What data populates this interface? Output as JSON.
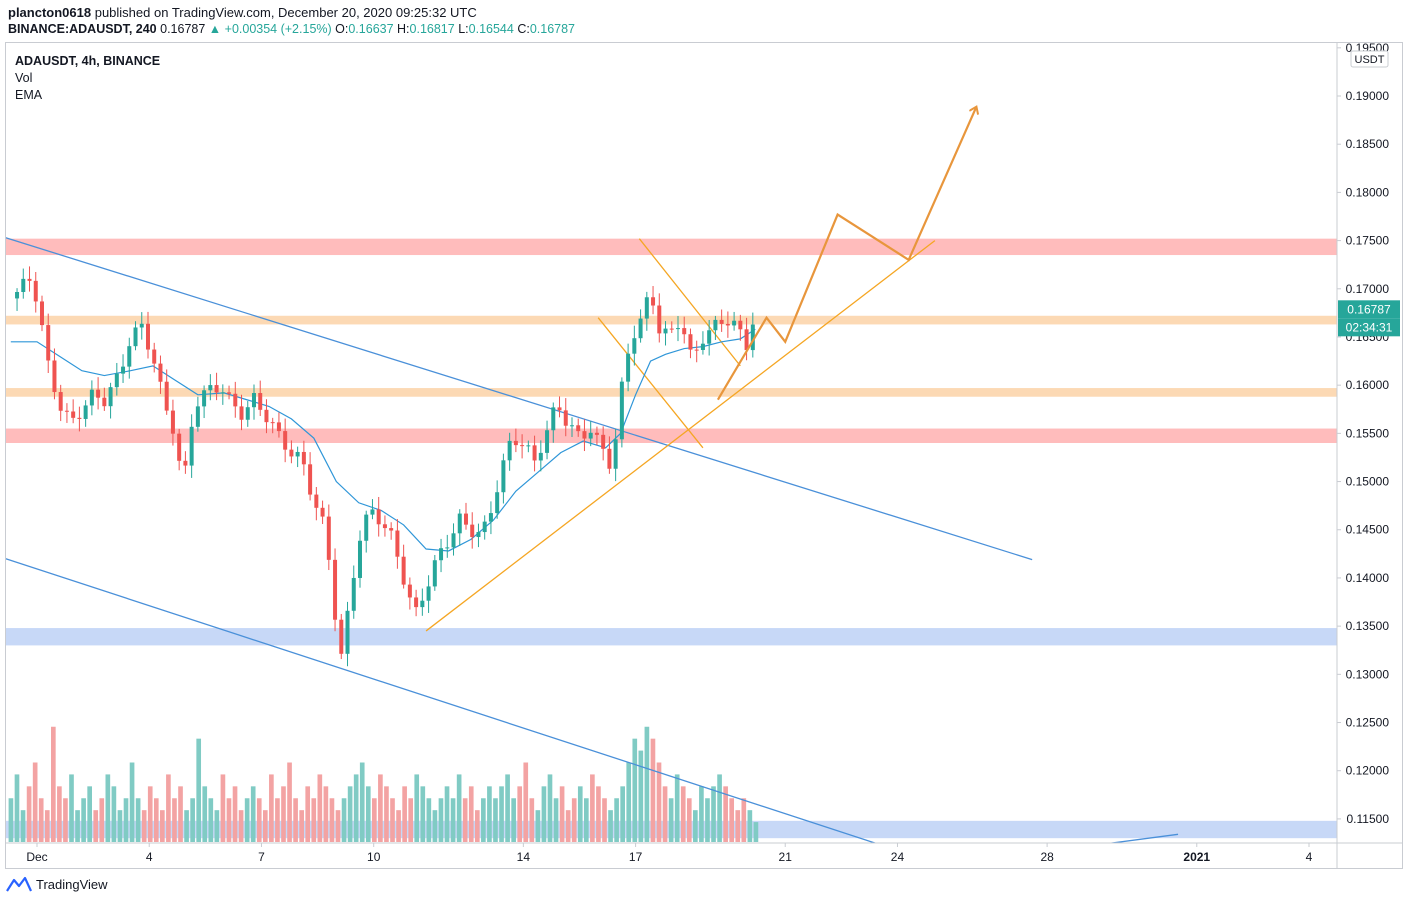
{
  "header": {
    "author": "plancton0618",
    "published_text": "published on TradingView.com, December 20, 2020 09:25:32 UTC",
    "symbol_line": "BINANCE:ADAUSDT, 240",
    "last_price": "0.16787",
    "change_text": "▲ +0.00354 (+2.15%)",
    "o_label": "O:",
    "o_value": "0.16637",
    "h_label": "H:",
    "h_value": "0.16817",
    "l_label": "L:",
    "l_value": "0.16544",
    "c_label": "C:",
    "c_value": "0.16787"
  },
  "legend": {
    "symbol": "ADAUSDT, 4h, BINANCE",
    "vol": "Vol",
    "ema": "EMA"
  },
  "footer": {
    "brand": "TradingView"
  },
  "chart_data": {
    "type": "candlestick",
    "title": "ADAUSDT, 4h, BINANCE",
    "currency": "USDT",
    "ylim": [
      0.1125,
      0.1955
    ],
    "y_ticks": [
      "0.19500",
      "0.19000",
      "0.18500",
      "0.18000",
      "0.17500",
      "0.17000",
      "0.16500",
      "0.16000",
      "0.15500",
      "0.15000",
      "0.14500",
      "0.14000",
      "0.13500",
      "0.13000",
      "0.12500",
      "0.12000",
      "0.11500"
    ],
    "x_ticks": [
      {
        "label": "Dec",
        "day": 1
      },
      {
        "label": "4",
        "day": 4
      },
      {
        "label": "7",
        "day": 7
      },
      {
        "label": "10",
        "day": 10
      },
      {
        "label": "14",
        "day": 14
      },
      {
        "label": "17",
        "day": 17
      },
      {
        "label": "21",
        "day": 21
      },
      {
        "label": "24",
        "day": 24
      },
      {
        "label": "28",
        "day": 28
      },
      {
        "label": "2021",
        "day": 32
      },
      {
        "label": "4",
        "day": 35
      }
    ],
    "last_price_label": "0.16787",
    "countdown_label": "02:34:31",
    "close_path": [
      [
        0.3,
        0.169
      ],
      [
        0.8,
        0.171
      ],
      [
        1.0,
        0.169
      ],
      [
        1.3,
        0.162
      ],
      [
        1.6,
        0.158
      ],
      [
        1.9,
        0.156
      ],
      [
        2.2,
        0.1575
      ],
      [
        2.5,
        0.159
      ],
      [
        2.8,
        0.1585
      ],
      [
        3.2,
        0.161
      ],
      [
        3.5,
        0.165
      ],
      [
        3.8,
        0.166
      ],
      [
        4.1,
        0.163
      ],
      [
        4.4,
        0.158
      ],
      [
        4.7,
        0.155
      ],
      [
        4.9,
        0.149
      ],
      [
        5.2,
        0.158
      ],
      [
        5.6,
        0.1595
      ],
      [
        5.9,
        0.16
      ],
      [
        6.2,
        0.158
      ],
      [
        6.5,
        0.157
      ],
      [
        6.8,
        0.1585
      ],
      [
        7.1,
        0.157
      ],
      [
        7.5,
        0.1545
      ],
      [
        7.8,
        0.153
      ],
      [
        8.1,
        0.152
      ],
      [
        8.4,
        0.148
      ],
      [
        8.7,
        0.145
      ],
      [
        8.9,
        0.139
      ],
      [
        9.1,
        0.131
      ],
      [
        9.3,
        0.136
      ],
      [
        9.6,
        0.144
      ],
      [
        9.9,
        0.147
      ],
      [
        10.2,
        0.146
      ],
      [
        10.5,
        0.144
      ],
      [
        10.8,
        0.14
      ],
      [
        11.1,
        0.136
      ],
      [
        11.4,
        0.139
      ],
      [
        11.7,
        0.142
      ],
      [
        12.0,
        0.144
      ],
      [
        12.3,
        0.146
      ],
      [
        12.6,
        0.145
      ],
      [
        12.9,
        0.1445
      ],
      [
        13.1,
        0.1465
      ],
      [
        13.4,
        0.151
      ],
      [
        13.7,
        0.1545
      ],
      [
        14.0,
        0.154
      ],
      [
        14.3,
        0.152
      ],
      [
        14.6,
        0.155
      ],
      [
        14.9,
        0.158
      ],
      [
        15.2,
        0.156
      ],
      [
        15.5,
        0.1545
      ],
      [
        15.8,
        0.1555
      ],
      [
        16.0,
        0.154
      ],
      [
        16.3,
        0.152
      ],
      [
        16.5,
        0.155
      ],
      [
        16.7,
        0.162
      ],
      [
        17.0,
        0.166
      ],
      [
        17.2,
        0.167
      ],
      [
        17.4,
        0.17
      ],
      [
        17.6,
        0.166
      ],
      [
        17.9,
        0.165
      ],
      [
        18.2,
        0.167
      ],
      [
        18.5,
        0.1625
      ],
      [
        18.8,
        0.165
      ],
      [
        19.1,
        0.166
      ],
      [
        19.4,
        0.167
      ],
      [
        19.7,
        0.166
      ],
      [
        20.0,
        0.164
      ],
      [
        20.2,
        0.1679
      ]
    ],
    "ema_path": [
      [
        0.3,
        0.1645
      ],
      [
        1.0,
        0.1645
      ],
      [
        1.6,
        0.163
      ],
      [
        2.2,
        0.1615
      ],
      [
        2.8,
        0.161
      ],
      [
        3.5,
        0.1615
      ],
      [
        4.1,
        0.162
      ],
      [
        4.7,
        0.1605
      ],
      [
        5.3,
        0.159
      ],
      [
        6.0,
        0.1592
      ],
      [
        6.6,
        0.1585
      ],
      [
        7.2,
        0.1578
      ],
      [
        7.8,
        0.1565
      ],
      [
        8.4,
        0.1545
      ],
      [
        9.0,
        0.15
      ],
      [
        9.6,
        0.1478
      ],
      [
        10.2,
        0.147
      ],
      [
        10.8,
        0.1455
      ],
      [
        11.4,
        0.143
      ],
      [
        12.0,
        0.1428
      ],
      [
        12.6,
        0.144
      ],
      [
        13.2,
        0.146
      ],
      [
        13.8,
        0.149
      ],
      [
        14.4,
        0.151
      ],
      [
        15.0,
        0.153
      ],
      [
        15.6,
        0.1542
      ],
      [
        16.2,
        0.1535
      ],
      [
        16.6,
        0.155
      ],
      [
        17.0,
        0.159
      ],
      [
        17.4,
        0.1625
      ],
      [
        17.8,
        0.1632
      ],
      [
        18.3,
        0.1638
      ],
      [
        18.8,
        0.164
      ],
      [
        19.3,
        0.1645
      ],
      [
        19.8,
        0.1648
      ],
      [
        20.2,
        0.1658
      ]
    ],
    "volume": [
      3,
      5,
      2,
      4,
      6,
      3,
      2,
      9,
      4,
      3,
      5,
      2,
      3,
      4,
      2,
      3,
      5,
      4,
      2,
      3,
      6,
      3,
      2,
      4,
      3,
      2,
      5,
      3,
      4,
      2,
      3,
      8,
      4,
      3,
      2,
      5,
      3,
      4,
      2,
      3,
      4,
      3,
      2,
      5,
      3,
      4,
      6,
      3,
      2,
      4,
      3,
      5,
      4,
      3,
      2,
      3,
      4,
      5,
      6,
      4,
      3,
      5,
      4,
      3,
      2,
      4,
      3,
      5,
      4,
      3,
      2,
      3,
      4,
      3,
      5,
      3,
      4,
      2,
      3,
      4,
      3,
      4,
      5,
      3,
      4,
      6,
      3,
      2,
      4,
      5,
      3,
      4,
      2,
      3,
      4,
      3,
      5,
      4,
      3,
      2,
      3,
      4,
      6,
      8,
      7,
      9,
      8,
      6,
      4,
      3,
      5,
      4,
      3,
      2,
      4,
      3,
      4,
      5,
      4,
      3,
      2,
      3,
      2,
      1
    ],
    "zones": [
      {
        "name": "resistance-zone-top",
        "low": 0.1735,
        "high": 0.1752,
        "color": "#ffbcbc"
      },
      {
        "name": "orange-zone-upper",
        "low": 0.1663,
        "high": 0.1672,
        "color": "#fcd9b4"
      },
      {
        "name": "orange-zone-lower",
        "low": 0.1588,
        "high": 0.1597,
        "color": "#fcd9b4"
      },
      {
        "name": "resistance-zone-mid",
        "low": 0.154,
        "high": 0.1555,
        "color": "#ffbcbc"
      },
      {
        "name": "support-zone-blue",
        "low": 0.133,
        "high": 0.1348,
        "color": "#c7d8f7"
      },
      {
        "name": "support-zone-blue-low",
        "low": 0.113,
        "high": 0.1148,
        "color": "#c7d8f7"
      }
    ],
    "trendlines": [
      {
        "name": "channel-upper-line",
        "color": "#4a90d9",
        "points": [
          [
            0.0,
            0.1755
          ],
          [
            27.6,
            0.1419
          ]
        ]
      },
      {
        "name": "channel-lower-line",
        "color": "#4a90d9",
        "points": [
          [
            0.0,
            0.1422
          ],
          [
            24.5,
            0.1111
          ]
        ]
      },
      {
        "name": "lower-right-line",
        "color": "#4a90d9",
        "points": [
          [
            27.0,
            0.1111
          ],
          [
            31.5,
            0.1134
          ]
        ]
      },
      {
        "name": "rising-support-line",
        "color": "#f5a623",
        "points": [
          [
            11.4,
            0.1345
          ],
          [
            25.0,
            0.175
          ]
        ]
      },
      {
        "name": "flag-upper-line",
        "color": "#f5a623",
        "points": [
          [
            17.1,
            0.1752
          ],
          [
            19.8,
            0.162
          ]
        ]
      },
      {
        "name": "flag-lower-line",
        "color": "#f5a623",
        "points": [
          [
            16.0,
            0.167
          ],
          [
            18.8,
            0.1535
          ]
        ]
      }
    ],
    "projection": {
      "color": "#e8963c",
      "points": [
        [
          19.2,
          0.1585
        ],
        [
          20.5,
          0.167
        ],
        [
          21.0,
          0.1645
        ],
        [
          22.4,
          0.1777
        ],
        [
          24.3,
          0.173
        ],
        [
          26.1,
          0.1888
        ]
      ]
    }
  }
}
